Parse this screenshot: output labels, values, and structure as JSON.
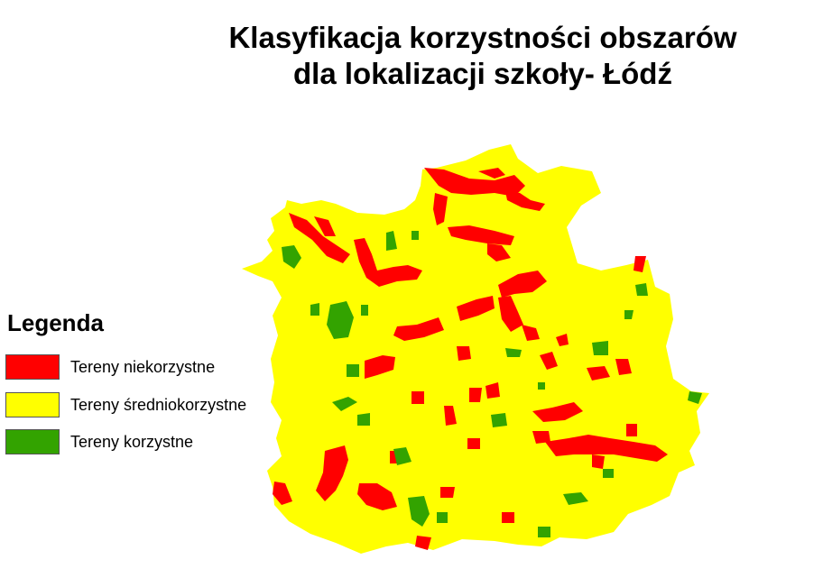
{
  "title": {
    "line1": "Klasyfikacja korzystności obszarów",
    "line2": "dla lokalizacji szkoły- Łódź"
  },
  "legend": {
    "title": "Legenda",
    "items": [
      {
        "label": "Tereny niekorzystne",
        "color": "#ff0000"
      },
      {
        "label": "Tereny średniokorzystne",
        "color": "#ffff00"
      },
      {
        "label": "Tereny korzystne",
        "color": "#33a300"
      }
    ]
  },
  "colors": {
    "unfavorable": "#ff0000",
    "medium": "#ffff00",
    "favorable": "#33a300"
  }
}
